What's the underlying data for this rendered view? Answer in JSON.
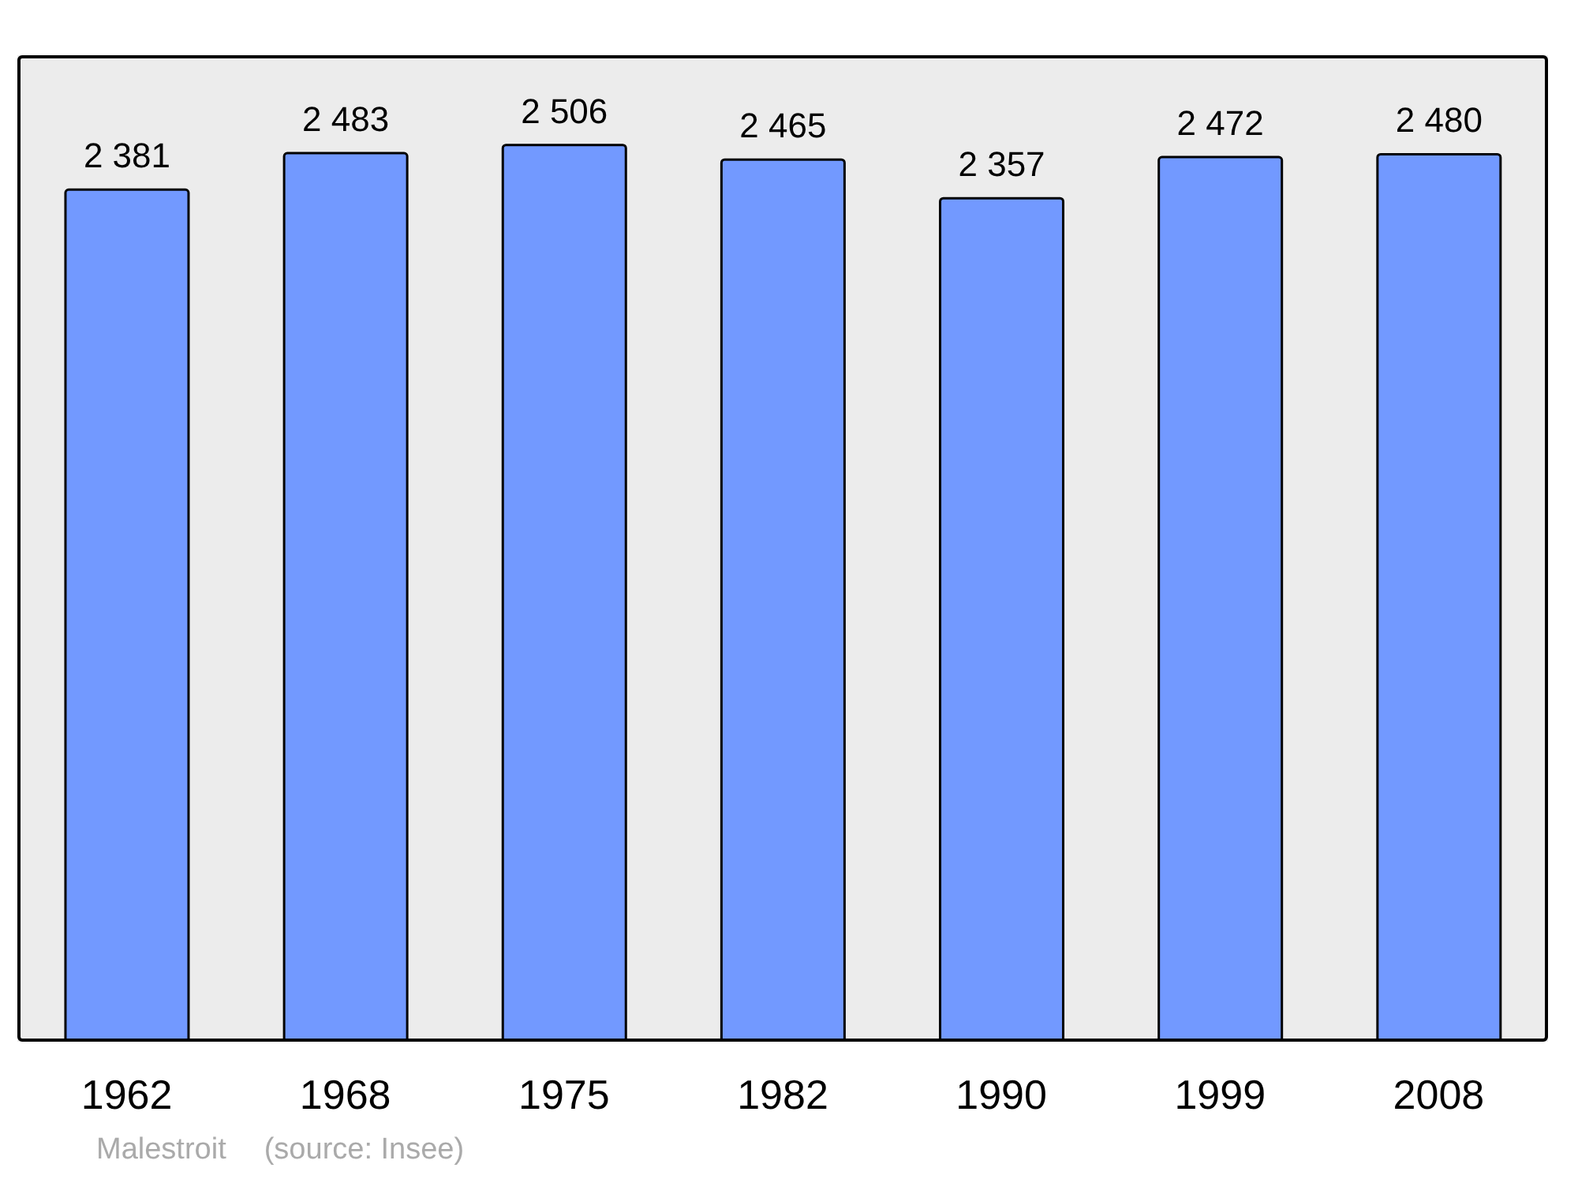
{
  "chart_data": {
    "type": "bar",
    "categories": [
      "1962",
      "1968",
      "1975",
      "1982",
      "1990",
      "1999",
      "2008"
    ],
    "values": [
      2381,
      2483,
      2506,
      2465,
      2357,
      2472,
      2480
    ],
    "value_labels": [
      "2 381",
      "2 483",
      "2 506",
      "2 465",
      "2 357",
      "2 472",
      "2 480"
    ],
    "color": "#7299ff",
    "annotations": [
      "Malestroit",
      "(source: Insee)"
    ]
  }
}
